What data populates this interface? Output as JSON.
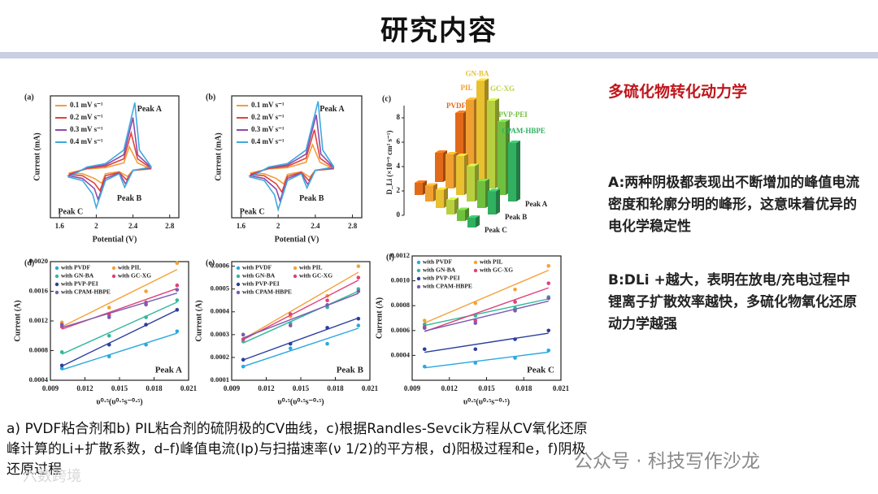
{
  "slide": {
    "title": "研究内容",
    "subtitle": "多硫化物转化动力学",
    "paragraphs": [
      "A:两种阴极都表现出不断增加的峰值电流密度和轮廓分明的峰形，这意味着优异的电化学稳定性",
      "B:DLi +越大，表明在放电/充电过程中锂离子扩散效率越快，多硫化物氧化还原动力学越强"
    ],
    "caption": "a) PVDF粘合剂和b) PIL粘合剂的硫阴极的CV曲线，c)根据Randles-Sevcik方程从CV氧化还原峰计算的Li+扩散系数，d–f)峰值电流(Ip)与扫描速率(ν 1/2)的平方根，d)阳极过程和e，f)阴极还原过程",
    "watermarks": [
      "公众号 · 科技写作沙龙",
      "六数跨境"
    ]
  },
  "chart_data": [
    {
      "type": "line",
      "panel": "(a)",
      "x_label": "Potential (V)",
      "y_label": "Current (mA)",
      "xlim": [
        1.5,
        2.9
      ],
      "ylim": [
        -0.7,
        1.1
      ],
      "xticks": [
        1.6,
        2.0,
        2.4,
        2.8
      ],
      "annotations": [
        "Peak A",
        "Peak B",
        "Peak C"
      ],
      "series": [
        {
          "name": "0.1 mV s⁻¹",
          "color": "#f39c3a",
          "x": [
            2.6,
            2.4,
            2.34,
            2.25,
            2.1,
            2.06,
            1.98,
            1.85,
            1.7,
            1.9,
            2.1,
            2.3,
            2.36,
            2.45,
            2.6
          ],
          "values": [
            0.02,
            0,
            -0.09,
            -0.02,
            -0.05,
            -0.19,
            -0.12,
            -0.05,
            -0.04,
            0.02,
            0.04,
            0.11,
            0.35,
            0.11,
            0.02
          ]
        },
        {
          "name": "0.2 mV s⁻¹",
          "color": "#e0443c",
          "x": [
            2.6,
            2.4,
            2.33,
            2.25,
            2.1,
            2.04,
            1.98,
            1.85,
            1.7,
            1.9,
            2.1,
            2.3,
            2.38,
            2.45,
            2.6
          ],
          "values": [
            0.03,
            0,
            -0.14,
            -0.03,
            -0.08,
            -0.3,
            -0.19,
            -0.08,
            -0.06,
            0.03,
            0.06,
            0.17,
            0.55,
            0.17,
            0.03
          ]
        },
        {
          "name": "0.3 mV s⁻¹",
          "color": "#8e4aa8",
          "x": [
            2.6,
            2.4,
            2.32,
            2.25,
            2.1,
            2.02,
            1.98,
            1.85,
            1.7,
            1.9,
            2.1,
            2.3,
            2.4,
            2.45,
            2.6
          ],
          "values": [
            0.04,
            0,
            -0.2,
            -0.04,
            -0.12,
            -0.43,
            -0.27,
            -0.12,
            -0.08,
            0.04,
            0.08,
            0.23,
            0.78,
            0.23,
            0.04
          ]
        },
        {
          "name": "0.4 mV s⁻¹",
          "color": "#3fa9e0",
          "x": [
            2.6,
            2.4,
            2.31,
            2.25,
            2.1,
            2.0,
            1.96,
            1.85,
            1.7,
            1.9,
            2.1,
            2.3,
            2.42,
            2.47,
            2.6
          ],
          "values": [
            0.05,
            0,
            -0.25,
            -0.05,
            -0.15,
            -0.55,
            -0.35,
            -0.15,
            -0.1,
            0.05,
            0.1,
            0.3,
            1.0,
            0.3,
            0.05
          ]
        }
      ]
    },
    {
      "type": "line",
      "panel": "(b)",
      "x_label": "Potential (V)",
      "y_label": "Current (mA)",
      "xlim": [
        1.5,
        2.9
      ],
      "ylim": [
        -0.7,
        1.1
      ],
      "xticks": [
        1.6,
        2.0,
        2.4,
        2.8
      ],
      "annotations": [
        "Peak A",
        "Peak B",
        "Peak C"
      ],
      "series": [
        {
          "name": "0.1 mV s⁻¹",
          "color": "#f39c3a",
          "x": [
            2.6,
            2.4,
            2.34,
            2.25,
            2.1,
            2.06,
            1.98,
            1.85,
            1.7,
            1.9,
            2.1,
            2.3,
            2.37,
            2.45,
            2.6
          ],
          "values": [
            0.02,
            0,
            -0.1,
            -0.02,
            -0.06,
            -0.2,
            -0.12,
            -0.05,
            -0.04,
            0.02,
            0.04,
            0.12,
            0.38,
            0.12,
            0.02
          ]
        },
        {
          "name": "0.2 mV s⁻¹",
          "color": "#e0443c",
          "x": [
            2.6,
            2.4,
            2.33,
            2.25,
            2.1,
            2.04,
            1.98,
            1.85,
            1.7,
            1.9,
            2.1,
            2.3,
            2.39,
            2.45,
            2.6
          ],
          "values": [
            0.03,
            0,
            -0.15,
            -0.03,
            -0.09,
            -0.32,
            -0.2,
            -0.08,
            -0.06,
            0.03,
            0.06,
            0.18,
            0.6,
            0.18,
            0.03
          ]
        },
        {
          "name": "0.3 mV s⁻¹",
          "color": "#8e4aa8",
          "x": [
            2.6,
            2.4,
            2.32,
            2.25,
            2.1,
            2.02,
            1.98,
            1.85,
            1.7,
            1.9,
            2.1,
            2.3,
            2.41,
            2.46,
            2.6
          ],
          "values": [
            0.04,
            0,
            -0.21,
            -0.04,
            -0.12,
            -0.45,
            -0.28,
            -0.12,
            -0.08,
            0.04,
            0.08,
            0.24,
            0.82,
            0.24,
            0.04
          ]
        },
        {
          "name": "0.4 mV s⁻¹",
          "color": "#3fa9e0",
          "x": [
            2.6,
            2.4,
            2.31,
            2.25,
            2.1,
            2.0,
            1.96,
            1.85,
            1.7,
            1.9,
            2.1,
            2.3,
            2.43,
            2.48,
            2.6
          ],
          "values": [
            0.05,
            0,
            -0.26,
            -0.05,
            -0.15,
            -0.58,
            -0.36,
            -0.15,
            -0.1,
            0.05,
            0.1,
            0.3,
            1.02,
            0.3,
            0.05
          ]
        }
      ]
    },
    {
      "type": "bar",
      "panel": "(c)",
      "y_label": "D_Li (×10⁻⁹ cm² s⁻¹)",
      "ylim": [
        0,
        9
      ],
      "yticks": [
        0,
        2,
        4,
        6,
        8
      ],
      "categories": [
        "PVDF",
        "PIL",
        "GN-BA",
        "GC-XG",
        "PVP-PEI",
        "CPAM-HBPE"
      ],
      "colors": [
        "#e06a1a",
        "#f0a030",
        "#e8c030",
        "#b8d040",
        "#70c040",
        "#30b060"
      ],
      "series": [
        {
          "name": "Peak A",
          "values": [
            4.6,
            6.2,
            8.3,
            7.2,
            6.0,
            4.8
          ]
        },
        {
          "name": "Peak B",
          "values": [
            2.4,
            2.8,
            3.2,
            2.9,
            2.2,
            1.9
          ]
        },
        {
          "name": "Peak C",
          "values": [
            1.0,
            1.3,
            1.5,
            1.2,
            0.9,
            0.8
          ]
        }
      ]
    },
    {
      "type": "scatter",
      "panel": "(d)",
      "x_label": "υ⁰·⁵(υ⁰·⁵s⁻⁰·⁵)",
      "y_label": "Current (A)",
      "annotations": [
        "Peak A"
      ],
      "x": [
        0.01,
        0.0141,
        0.0173,
        0.02
      ],
      "xlim": [
        0.009,
        0.021
      ],
      "xticks": [
        0.009,
        0.012,
        0.015,
        0.018,
        0.021
      ],
      "ylim": [
        0.0004,
        0.002
      ],
      "yticks": [
        0.0004,
        0.0008,
        0.0012,
        0.0016,
        {
          "value": 0.002,
          "label": "0.0020"
        }
      ],
      "series": [
        {
          "name": "with PVDF",
          "color": "#29a8df",
          "values": [
            0.00056,
            0.00072,
            0.00088,
            0.00106
          ]
        },
        {
          "name": "with PIL",
          "color": "#f4a13a",
          "values": [
            0.00118,
            0.00138,
            0.0016,
            0.00198
          ]
        },
        {
          "name": "with GN-BA",
          "color": "#33b89a",
          "values": [
            0.00078,
            0.001,
            0.00125,
            0.00148
          ]
        },
        {
          "name": "with GC-XG",
          "color": "#e0407a",
          "values": [
            0.00112,
            0.00128,
            0.00145,
            0.00168
          ]
        },
        {
          "name": "with PVP-PEI",
          "color": "#2c3e9e",
          "values": [
            0.0006,
            0.00088,
            0.00115,
            0.00135
          ]
        },
        {
          "name": "with CPAM-HBPE",
          "color": "#7a5bb0",
          "values": [
            0.00115,
            0.00125,
            0.00142,
            0.00162
          ]
        }
      ]
    },
    {
      "type": "scatter",
      "panel": "(e)",
      "x_label": "υ⁰·⁵(υ⁰·⁵s⁻⁰·⁵)",
      "y_label": "Current (A)",
      "annotations": [
        "Peak B"
      ],
      "x": [
        0.01,
        0.0141,
        0.0173,
        0.02
      ],
      "xlim": [
        0.009,
        0.021
      ],
      "xticks": [
        0.009,
        0.012,
        0.015,
        0.018,
        0.021
      ],
      "ylim": [
        0.0001,
        0.00062
      ],
      "yticks": [
        0.0001,
        0.0002,
        0.0003,
        0.0004,
        0.0005,
        0.0006
      ],
      "series": [
        {
          "name": "with PVDF",
          "color": "#29a8df",
          "values": [
            0.00016,
            0.00024,
            0.00026,
            0.00034
          ]
        },
        {
          "name": "with PIL",
          "color": "#f4a13a",
          "values": [
            0.0003,
            0.00038,
            0.00047,
            0.0006
          ]
        },
        {
          "name": "with GN-BA",
          "color": "#33b89a",
          "values": [
            0.00027,
            0.00035,
            0.00042,
            0.0005
          ]
        },
        {
          "name": "with GC-XG",
          "color": "#e0407a",
          "values": [
            0.00028,
            0.00039,
            0.00045,
            0.00055
          ]
        },
        {
          "name": "with PVP-PEI",
          "color": "#2c3e9e",
          "values": [
            0.00019,
            0.00026,
            0.00033,
            0.00037
          ]
        },
        {
          "name": "with CPAM-HBPE",
          "color": "#7a5bb0",
          "values": [
            0.0003,
            0.00034,
            0.00043,
            0.00049
          ]
        }
      ]
    },
    {
      "type": "scatter",
      "panel": "(f)",
      "x_label": "υ⁰·⁵(υ⁰·⁵s⁻⁰·⁵)",
      "y_label": "Current (A)",
      "annotations": [
        "Peak C"
      ],
      "x": [
        0.01,
        0.0141,
        0.0173,
        0.02
      ],
      "xlim": [
        0.009,
        0.021
      ],
      "xticks": [
        0.009,
        0.012,
        0.015,
        0.018,
        0.021
      ],
      "ylim": [
        0.0002,
        0.0012
      ],
      "yticks": [
        0.0004,
        0.0006,
        0.0008,
        {
          "value": 0.001,
          "label": "0.0010"
        },
        0.0012
      ],
      "series": [
        {
          "name": "with PVDF",
          "color": "#29a8df",
          "values": [
            0.00031,
            0.00034,
            0.00038,
            0.00044
          ]
        },
        {
          "name": "with PIL",
          "color": "#f4a13a",
          "values": [
            0.00068,
            0.00082,
            0.00093,
            0.00112
          ]
        },
        {
          "name": "with GN-BA",
          "color": "#33b89a",
          "values": [
            0.00065,
            0.00072,
            0.00078,
            0.00087
          ]
        },
        {
          "name": "with GC-XG",
          "color": "#e0407a",
          "values": [
            0.00063,
            0.00068,
            0.00083,
            0.00098
          ]
        },
        {
          "name": "with PVP-PEI",
          "color": "#2c3e9e",
          "values": [
            0.00045,
            0.00045,
            0.00053,
            0.0006
          ]
        },
        {
          "name": "with CPAM-HBPE",
          "color": "#7a5bb0",
          "values": [
            0.00062,
            0.00066,
            0.00076,
            0.00086
          ]
        }
      ]
    }
  ]
}
